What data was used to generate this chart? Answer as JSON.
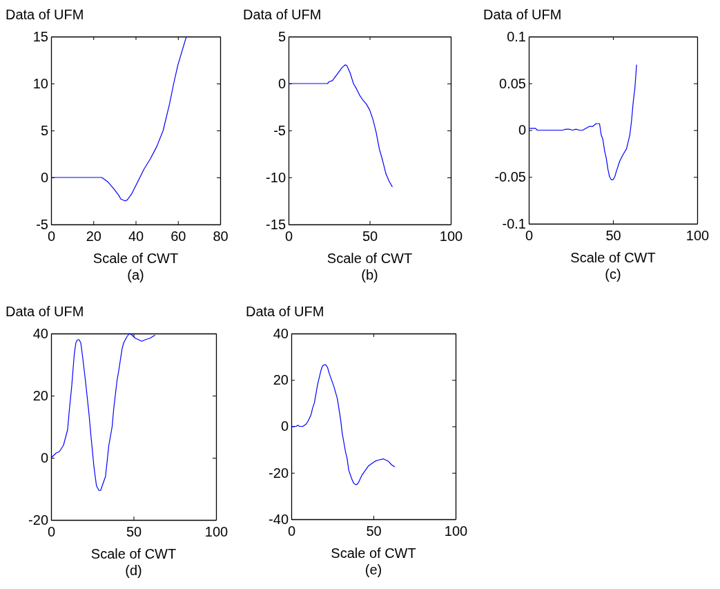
{
  "chart_data": [
    {
      "type": "line",
      "ylabel": "Data of UFM",
      "xlabel": "Scale of CWT",
      "annotations": [
        "(a)"
      ],
      "xlim": [
        0,
        80
      ],
      "xticks": [
        0,
        20,
        40,
        60,
        80
      ],
      "ylim": [
        -5,
        15
      ],
      "yticks": [
        -5,
        0,
        5,
        10,
        15
      ],
      "grid": false,
      "series": [
        {
          "color": "#0000ff",
          "x": [
            0,
            10,
            20,
            24,
            27,
            30,
            32,
            33,
            35,
            36,
            38,
            40,
            42,
            44,
            47,
            50,
            53,
            56,
            58,
            60,
            62,
            64
          ],
          "values": [
            0,
            0,
            0,
            0,
            -0.5,
            -1.3,
            -1.9,
            -2.3,
            -2.5,
            -2.4,
            -1.8,
            -0.9,
            0,
            0.9,
            2,
            3.3,
            5,
            7.8,
            10,
            12,
            13.5,
            15
          ]
        }
      ]
    },
    {
      "type": "line",
      "ylabel": "Data of UFM",
      "xlabel": "Scale of CWT",
      "annotations": [
        "(b)"
      ],
      "xlim": [
        0,
        100
      ],
      "xticks": [
        0,
        50,
        100
      ],
      "ylim": [
        -15,
        5
      ],
      "yticks": [
        -15,
        -10,
        -5,
        0,
        5
      ],
      "grid": false,
      "series": [
        {
          "color": "#0000ff",
          "x": [
            0,
            10,
            20,
            24,
            25,
            27,
            30,
            33,
            35,
            36,
            38,
            40,
            42,
            44,
            46,
            48,
            50,
            52,
            54,
            56,
            58,
            60,
            62,
            64
          ],
          "values": [
            0,
            0,
            0,
            0,
            0.2,
            0.3,
            1,
            1.7,
            2,
            1.9,
            1.1,
            0,
            -0.6,
            -1.3,
            -1.8,
            -2.2,
            -2.8,
            -3.8,
            -5.2,
            -7,
            -8.2,
            -9.6,
            -10.4,
            -11
          ]
        }
      ]
    },
    {
      "type": "line",
      "ylabel": "Data of UFM",
      "xlabel": "Scale of CWT",
      "annotations": [
        "(c)"
      ],
      "xlim": [
        0,
        100
      ],
      "xticks": [
        0,
        50,
        100
      ],
      "ylim": [
        -0.1,
        0.1
      ],
      "yticks": [
        -0.1,
        -0.05,
        0,
        0.05,
        0.1
      ],
      "grid": false,
      "series": [
        {
          "color": "#0000ff",
          "x": [
            0,
            4,
            5,
            10,
            20,
            22,
            24,
            26,
            28,
            30,
            32,
            34,
            36,
            38,
            40,
            42,
            43,
            44,
            45,
            46,
            47,
            48,
            49,
            50,
            51,
            52,
            54,
            56,
            58,
            60,
            61,
            62,
            63,
            64
          ],
          "values": [
            0.002,
            0.002,
            0,
            0,
            0,
            0.001,
            0.001,
            0,
            0.001,
            0,
            0,
            0.002,
            0.004,
            0.004,
            0.007,
            0.007,
            -0.005,
            -0.01,
            -0.022,
            -0.03,
            -0.042,
            -0.05,
            -0.053,
            -0.053,
            -0.05,
            -0.044,
            -0.033,
            -0.026,
            -0.02,
            -0.005,
            0.01,
            0.03,
            0.045,
            0.07
          ]
        }
      ]
    },
    {
      "type": "line",
      "ylabel": "Data of UFM",
      "xlabel": "Scale of CWT",
      "annotations": [
        "(d)"
      ],
      "xlim": [
        0,
        100
      ],
      "xticks": [
        0,
        50,
        100
      ],
      "ylim": [
        -20,
        40
      ],
      "yticks": [
        -20,
        0,
        20,
        40
      ],
      "grid": false,
      "series": [
        {
          "color": "#0000ff",
          "x": [
            0,
            3,
            5,
            7.5,
            10,
            11,
            12.5,
            14,
            15,
            16,
            17,
            18,
            19,
            21,
            23,
            24,
            26,
            27.5,
            29,
            30,
            31,
            33,
            34,
            35,
            37,
            38,
            40,
            41,
            43,
            44,
            46,
            47.5,
            49,
            51,
            53,
            55,
            57,
            60,
            63
          ],
          "values": [
            0,
            1.5,
            2,
            4,
            9,
            15,
            23,
            33,
            37,
            38,
            38,
            37,
            33,
            24,
            14,
            8,
            -3,
            -9,
            -10.5,
            -10.5,
            -9,
            -6,
            -1,
            4,
            10,
            16,
            25,
            28,
            35,
            37,
            39,
            40,
            39.5,
            38.5,
            38,
            37.5,
            38,
            38.5,
            39.5
          ]
        }
      ]
    },
    {
      "type": "line",
      "ylabel": "Data of UFM",
      "xlabel": "Scale of CWT",
      "annotations": [
        "(e)"
      ],
      "xlim": [
        0,
        100
      ],
      "xticks": [
        0,
        50,
        100
      ],
      "ylim": [
        -40,
        40
      ],
      "yticks": [
        -40,
        -20,
        0,
        20,
        40
      ],
      "grid": false,
      "series": [
        {
          "color": "#0000ff",
          "x": [
            0,
            3,
            4,
            5,
            7,
            9,
            10,
            12,
            13,
            14,
            15,
            16,
            17,
            18,
            19,
            20,
            21,
            22,
            23,
            24,
            26,
            28,
            30,
            31,
            33,
            34,
            35,
            37,
            38,
            39,
            40,
            41,
            43,
            45,
            47,
            49,
            51,
            53,
            56,
            59,
            61,
            63
          ],
          "values": [
            0,
            0,
            0.5,
            0,
            0,
            1,
            2,
            5,
            8,
            10,
            14,
            18,
            21,
            24,
            26,
            26.5,
            26.5,
            25.5,
            23,
            21,
            17,
            12,
            3,
            -3,
            -11,
            -14,
            -19,
            -23,
            -24.5,
            -25,
            -25,
            -24,
            -21,
            -19,
            -17,
            -16,
            -15,
            -14.5,
            -14,
            -15,
            -16.5,
            -17.5
          ]
        }
      ]
    }
  ]
}
